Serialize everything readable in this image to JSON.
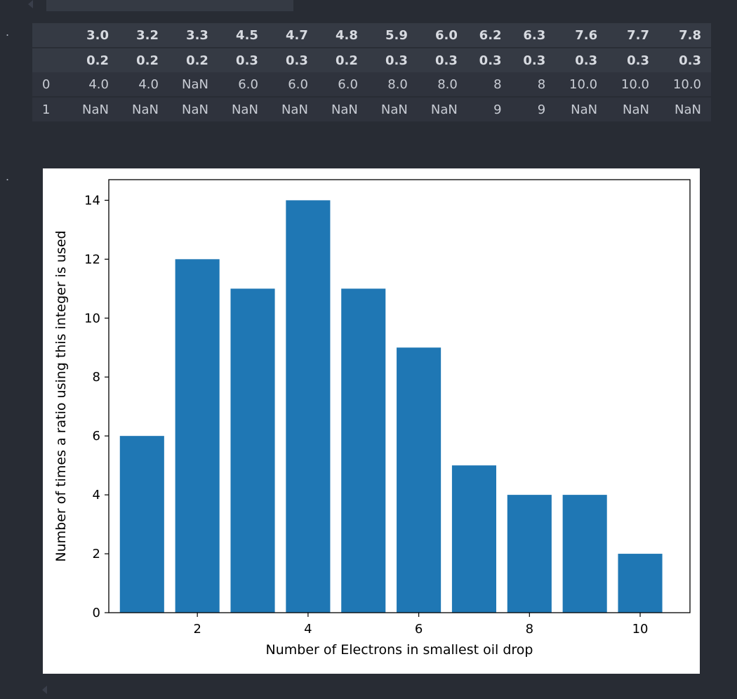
{
  "notebook": {
    "prompt_marker": "."
  },
  "dataframe": {
    "header_row_1": [
      "3.0",
      "3.2",
      "3.3",
      "4.5",
      "4.7",
      "4.8",
      "5.9",
      "6.0",
      "6.2",
      "6.3",
      "7.6",
      "7.7",
      "7.8"
    ],
    "header_row_2": [
      "0.2",
      "0.2",
      "0.2",
      "0.3",
      "0.3",
      "0.2",
      "0.3",
      "0.3",
      "0.3",
      "0.3",
      "0.3",
      "0.3",
      "0.3"
    ],
    "rows": [
      {
        "index": "0",
        "cells": [
          "4.0",
          "4.0",
          "NaN",
          "6.0",
          "6.0",
          "6.0",
          "8.0",
          "8.0",
          "8",
          "8",
          "10.0",
          "10.0",
          "10.0"
        ]
      },
      {
        "index": "1",
        "cells": [
          "NaN",
          "NaN",
          "NaN",
          "NaN",
          "NaN",
          "NaN",
          "NaN",
          "NaN",
          "9",
          "9",
          "NaN",
          "NaN",
          "NaN"
        ]
      }
    ]
  },
  "chart_data": {
    "type": "bar",
    "title": "",
    "xlabel": "Number of Electrons in smallest oil drop",
    "ylabel": "Number of times a ratio using this integer is used",
    "x": [
      1,
      2,
      3,
      4,
      5,
      6,
      7,
      8,
      9,
      10
    ],
    "values": [
      6,
      12,
      11,
      14,
      11,
      9,
      5,
      4,
      4,
      2
    ],
    "xlim": [
      0.4,
      10.9
    ],
    "ylim": [
      0,
      14.7
    ],
    "xticks": [
      "2",
      "4",
      "6",
      "8",
      "10"
    ],
    "yticks": [
      "0",
      "2",
      "4",
      "6",
      "8",
      "10",
      "12",
      "14"
    ],
    "bar_color": "#1f77b4",
    "grid": false
  }
}
